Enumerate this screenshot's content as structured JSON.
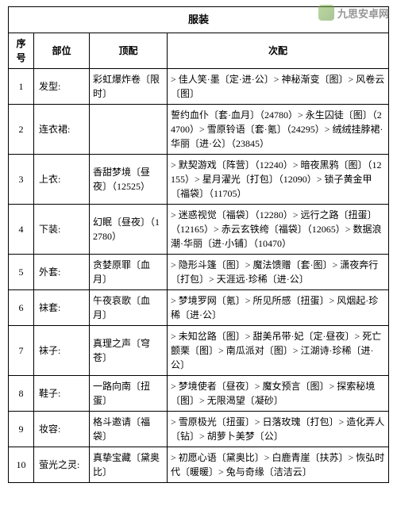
{
  "watermark": {
    "text": "九思安卓网"
  },
  "table": {
    "title": "服装",
    "headers": {
      "idx": "序号",
      "part": "部位",
      "top": "顶配",
      "sub": "次配"
    },
    "rows": [
      {
        "idx": "1",
        "part": "发型:",
        "top": "彩虹爆炸卷〔限时〕",
        "sub": "> 佳人笑·墨〔定·进·公〕> 神秘渐变〔图〕> 风卷云〔图〕"
      },
      {
        "idx": "2",
        "part": "连衣裙:",
        "top": "",
        "sub": "誓约血仆〔套·血月〕（24780）> 永生囚徒〔图〕（24700）> 雪原铃语〔套·氪〕（24295）> 绒绒挂脖裙·华丽〔进·公〕（23845）"
      },
      {
        "idx": "3",
        "part": "上衣:",
        "top": "香甜梦境〔昼夜〕（12525）",
        "sub": "> 默契游戏〔阵营〕（12240）> 暗夜黑鸦〔图〕（12155）> 星月濯光〔打包〕（12090）> 锁子黄金甲〔福袋〕（11705）"
      },
      {
        "idx": "4",
        "part": "下装:",
        "top": "幻眠〔昼夜〕（12780）",
        "sub": "> 迷惑视觉〔福袋〕（12280）> 远行之路〔扭蛋〕（12165）> 赤云玄铁绔〔福袋〕（12065）> 数据浪潮·华丽〔进·小铺〕（10470）"
      },
      {
        "idx": "5",
        "part": "外套:",
        "top": "贪婪原罪〔血月〕",
        "sub": "> 隐形斗篷〔图〕> 魔法馈赠〔套·图〕> 潇夜奔行〔打包〕> 天涯远·珍稀〔进·公〕"
      },
      {
        "idx": "6",
        "part": "袜套:",
        "top": "午夜哀歌〔血月〕",
        "sub": "> 梦境罗网〔氪〕> 所见所感〔扭蛋〕> 风烟起·珍稀〔进·公〕"
      },
      {
        "idx": "7",
        "part": "袜子:",
        "top": "真理之声〔穹苍〕",
        "sub": "> 未知岔路〔图〕> 甜美吊带·妃〔定·昼夜〕> 死亡颤栗〔图〕> 南瓜派对〔图〕> 江湖诗·珍稀〔进·公〕"
      },
      {
        "idx": "8",
        "part": "鞋子:",
        "top": "一路向南〔扭蛋〕",
        "sub": "> 梦境使者〔昼夜〕> 魔女预言〔图〕> 探索秘境〔图〕> 无限渴望〔凝砂〕"
      },
      {
        "idx": "9",
        "part": "妆容:",
        "top": "格斗邀请〔福袋〕",
        "sub": "> 雪原极光〔扭蛋〕> 日落玫瑰〔打包〕> 造化弄人〔钻〕> 胡萝卜美梦〔公〕"
      },
      {
        "idx": "10",
        "part": "萤光之灵:",
        "top": "真挚宝藏〔黛奥比〕",
        "sub": "> 初愿心语〔黛奥比〕> 白鹿青崖〔扶苏〕> 恢弘时代〔暖暖〕> 兔与奇缘〔洁洁云〕"
      }
    ]
  }
}
